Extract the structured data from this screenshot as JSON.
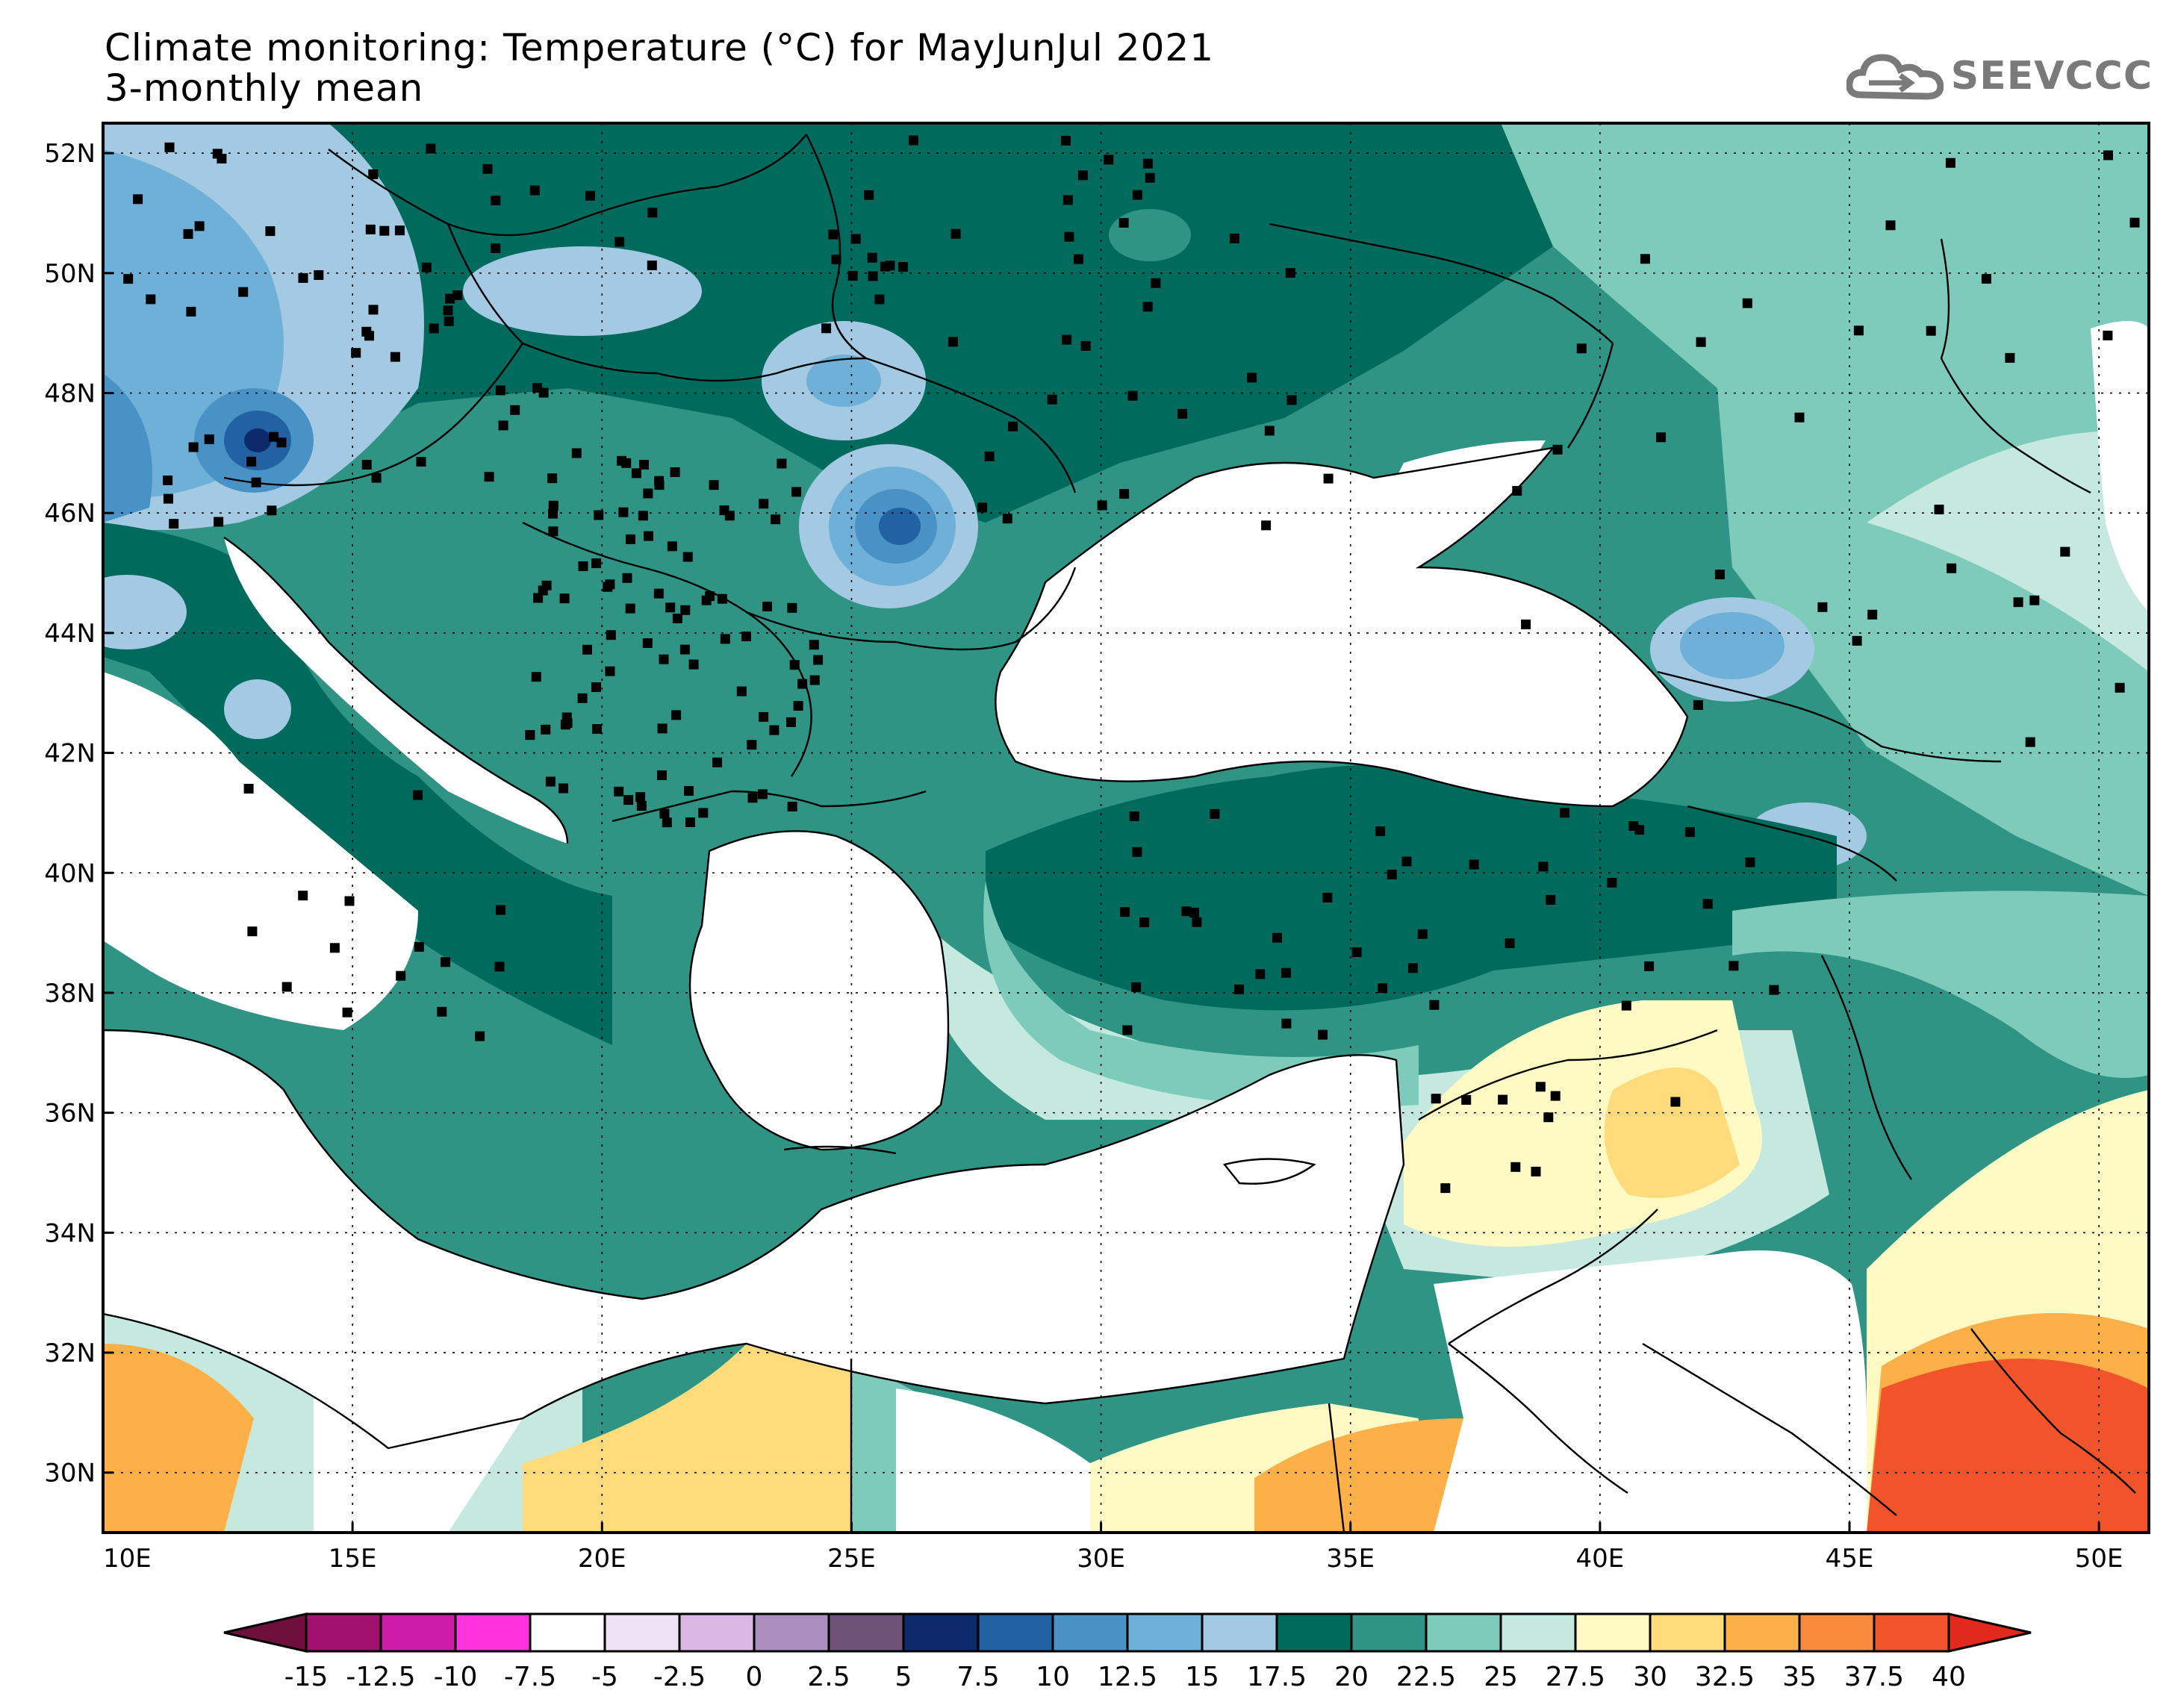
{
  "title": {
    "line1": "Climate monitoring: Temperature (°C) for MayJunJul 2021",
    "line2": "3-monthly mean"
  },
  "logo": {
    "text": "SEEVCCC",
    "icon": "cloud-arrow-icon"
  },
  "map": {
    "lon_range": [
      10,
      51
    ],
    "lat_range": [
      29,
      52.5
    ],
    "lon_ticks": [
      "10E",
      "15E",
      "20E",
      "25E",
      "30E",
      "35E",
      "40E",
      "45E",
      "50E"
    ],
    "lat_ticks": [
      "52N",
      "50N",
      "48N",
      "46N",
      "44N",
      "42N",
      "40N",
      "38N",
      "36N",
      "34N",
      "32N",
      "30N"
    ]
  },
  "colorbar": {
    "labels": [
      "-15",
      "-12.5",
      "-10",
      "-7.5",
      "-5",
      "-2.5",
      "0",
      "2.5",
      "5",
      "7.5",
      "10",
      "12.5",
      "15",
      "17.5",
      "20",
      "22.5",
      "25",
      "27.5",
      "30",
      "32.5",
      "35",
      "37.5",
      "40"
    ],
    "colors": [
      "#6e0f3c",
      "#a0126e",
      "#cc1ca8",
      "#ff33dd",
      "#ffffff",
      "#efe2f5",
      "#d8b7e5",
      "#ad8ec0",
      "#6e5278",
      "#0d2b6b",
      "#2262a2",
      "#4892c6",
      "#6fb0d8",
      "#a3c9e3",
      "#006b5d",
      "#2f9484",
      "#7fcbbb",
      "#c6e9df",
      "#fff9c4",
      "#ffdb7b",
      "#fdb047",
      "#fa8a3b",
      "#f1542a",
      "#e12a1c"
    ]
  }
}
